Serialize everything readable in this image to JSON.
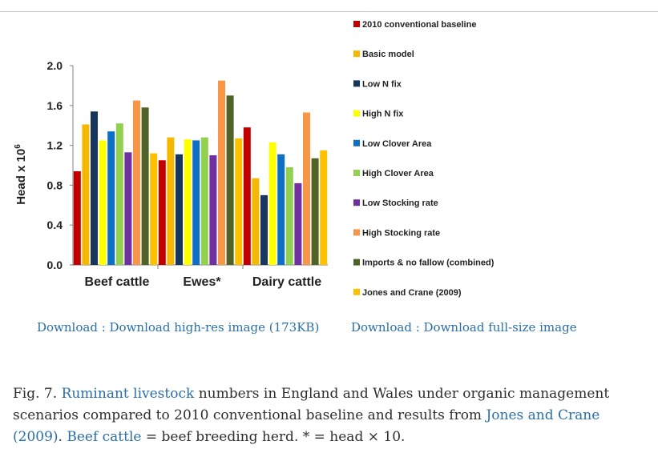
{
  "chart_data": {
    "type": "bar",
    "ylabel": "Head x 10",
    "ylabel_superscript": "6",
    "ylim": [
      0,
      2.0
    ],
    "yticks": [
      "0.0",
      "0.4",
      "0.8",
      "1.2",
      "1.6",
      "2.0"
    ],
    "categories": [
      "Beef cattle",
      "Ewes*",
      "Dairy cattle"
    ],
    "legend_position": "right",
    "grid": false,
    "series": [
      {
        "name": "2010 conventional baseline",
        "color": "#c00000",
        "values": [
          0.94,
          1.05,
          1.38
        ]
      },
      {
        "name": "Basic model",
        "color": "#f5b800",
        "values": [
          1.41,
          1.28,
          0.87
        ]
      },
      {
        "name": "Low N fix",
        "color": "#17365d",
        "values": [
          1.54,
          1.11,
          0.7
        ]
      },
      {
        "name": "High N fix",
        "color": "#ffff00",
        "values": [
          1.25,
          1.26,
          1.23
        ]
      },
      {
        "name": "Low Clover Area",
        "color": "#0f6fc6",
        "values": [
          1.34,
          1.25,
          1.11
        ]
      },
      {
        "name": "High Clover Area",
        "color": "#92d050",
        "values": [
          1.42,
          1.28,
          0.98
        ]
      },
      {
        "name": "Low Stocking rate",
        "color": "#7030a0",
        "values": [
          1.13,
          1.1,
          0.82
        ]
      },
      {
        "name": "High Stocking rate",
        "color": "#f79646",
        "values": [
          1.65,
          1.85,
          1.53
        ]
      },
      {
        "name": "Imports & no fallow (combined)",
        "color": "#4f6228",
        "values": [
          1.58,
          1.7,
          1.07
        ]
      },
      {
        "name": "Jones and Crane (2009)",
        "color": "#ffc000",
        "values": [
          1.12,
          1.27,
          1.15
        ]
      }
    ]
  },
  "links": {
    "download_highres": "Download : Download high-res image (173KB)",
    "download_fullsize": "Download : Download full-size image"
  },
  "caption": {
    "prefix": "Fig. 7.",
    "link1": "Ruminant livestock",
    "text1": "numbers in England and Wales under organic management scenarios compared to 2010 conventional baseline and results from",
    "link2": "Jones and Crane (2009)",
    "text2": ".",
    "link3": "Beef cattle",
    "text3": "= beef breeding herd. * = head × 10."
  }
}
